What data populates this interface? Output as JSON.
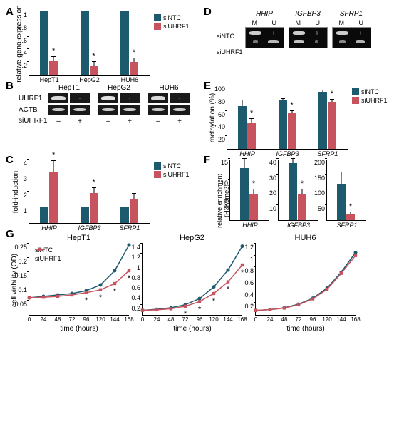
{
  "colors": {
    "siNTC": "#1e5a6e",
    "siUHRF1": "#c7535f",
    "axis": "#000000"
  },
  "legend": {
    "siNTC": "siNTC",
    "siUHRF1": "siUHRF1"
  },
  "panelA": {
    "ylabel": "relative gene expression",
    "ylim": [
      0,
      1.0
    ],
    "yticks": [
      0.2,
      0.4,
      0.6,
      0.8,
      1.0
    ],
    "groups": [
      "HepT1",
      "HepG2",
      "HUH6"
    ],
    "ntc": [
      1.0,
      1.0,
      1.0
    ],
    "uhrf1": [
      0.22,
      0.15,
      0.2
    ],
    "err": [
      0.06,
      0.05,
      0.06
    ],
    "stars": [
      true,
      true,
      true
    ]
  },
  "panelB": {
    "cells": [
      "HepT1",
      "HepG2",
      "HUH6"
    ],
    "rows": [
      "UHRF1",
      "ACTB"
    ],
    "footer_label": "siUHRF1",
    "signs": [
      "–",
      "+",
      "–",
      "+",
      "–",
      "+"
    ],
    "uhrf1_intensity": [
      0.9,
      0.1,
      0.95,
      0.05,
      0.9,
      0.1
    ],
    "actb_intensity": [
      0.8,
      0.8,
      0.8,
      0.8,
      0.8,
      0.8
    ]
  },
  "panelC": {
    "ylabel": "fold-induction",
    "ylim": [
      0,
      4.0
    ],
    "yticks": [
      1.0,
      2.0,
      3.0,
      4.0
    ],
    "genes": [
      "HHIP",
      "IGFBP3",
      "SFRP1"
    ],
    "ntc": [
      1.0,
      1.0,
      1.0
    ],
    "uhrf1": [
      3.2,
      1.9,
      1.5
    ],
    "err": [
      0.7,
      0.3,
      0.35
    ],
    "stars": [
      true,
      true,
      false
    ]
  },
  "panelD": {
    "genes": [
      "HHIP",
      "IGFBP3",
      "SFRP1"
    ],
    "rows": [
      "siNTC",
      "siUHRF1"
    ],
    "mu": [
      "M",
      "U"
    ],
    "bands": {
      "HHIP": {
        "siNTC": [
          0.9,
          0.1
        ],
        "siUHRF1": [
          0.4,
          0.8
        ]
      },
      "IGFBP3": {
        "siNTC": [
          0.9,
          0.15
        ],
        "siUHRF1": [
          0.85,
          0.3
        ]
      },
      "SFRP1": {
        "siNTC": [
          0.9,
          0.1
        ],
        "siUHRF1": [
          0.5,
          0.75
        ]
      }
    }
  },
  "panelE": {
    "ylabel": "methylation (%)",
    "ylim": [
      0,
      100
    ],
    "yticks": [
      20,
      40,
      60,
      80,
      100
    ],
    "genes": [
      "HHIP",
      "IGFBP3",
      "SFRP1"
    ],
    "ntc": [
      67,
      77,
      90
    ],
    "uhrf1": [
      41,
      57,
      74
    ],
    "err_ntc": [
      9,
      2,
      2
    ],
    "err_uhrf1": [
      6,
      3,
      4
    ],
    "stars": [
      true,
      true,
      true
    ]
  },
  "panelF": {
    "ylabel": "relative enrichment\n(H3K9me2)",
    "genes": [
      "HHIP",
      "IGFBP3",
      "SFRP1"
    ],
    "ylims": [
      [
        0,
        15
      ],
      [
        0,
        40
      ],
      [
        0,
        200
      ]
    ],
    "yticks": [
      [
        5,
        10,
        15
      ],
      [
        10,
        20,
        30,
        40
      ],
      [
        50,
        100,
        150,
        200
      ]
    ],
    "ntc": [
      12.8,
      37,
      118
    ],
    "uhrf1": [
      6.3,
      17,
      18
    ],
    "err_ntc": [
      2.2,
      3,
      38
    ],
    "err_uhrf1": [
      1.2,
      3,
      8
    ],
    "stars": [
      true,
      true,
      true
    ]
  },
  "panelG": {
    "ylabel": "cell viability (OD)",
    "xlabel": "time (hours)",
    "cells": [
      "HepT1",
      "HepG2",
      "HUH6"
    ],
    "xticks": [
      0,
      24,
      48,
      72,
      96,
      120,
      144,
      168
    ],
    "ylims": [
      [
        0.0,
        0.25
      ],
      [
        0.0,
        1.4
      ],
      [
        0.0,
        1.2
      ]
    ],
    "yticks": [
      [
        0.05,
        0.1,
        0.15,
        0.2,
        0.25
      ],
      [
        0.2,
        0.4,
        0.6,
        0.8,
        1.0,
        1.2,
        1.4
      ],
      [
        0.2,
        0.4,
        0.6,
        0.8,
        1.0,
        1.2
      ]
    ],
    "data": {
      "HepT1": {
        "ntc": [
          0.06,
          0.065,
          0.07,
          0.075,
          0.085,
          0.105,
          0.155,
          0.245
        ],
        "uhrf1": [
          0.06,
          0.062,
          0.065,
          0.07,
          0.078,
          0.088,
          0.11,
          0.155
        ],
        "stars": [
          false,
          false,
          false,
          false,
          true,
          true,
          true,
          true
        ]
      },
      "HepG2": {
        "ntc": [
          0.09,
          0.11,
          0.14,
          0.2,
          0.32,
          0.55,
          0.88,
          1.35
        ],
        "uhrf1": [
          0.09,
          0.1,
          0.12,
          0.17,
          0.26,
          0.42,
          0.65,
          0.98
        ],
        "stars": [
          false,
          false,
          false,
          true,
          true,
          true,
          true,
          true
        ]
      },
      "HUH6": {
        "ntc": [
          0.075,
          0.09,
          0.12,
          0.18,
          0.28,
          0.45,
          0.72,
          1.05
        ],
        "uhrf1": [
          0.075,
          0.088,
          0.115,
          0.17,
          0.27,
          0.43,
          0.7,
          1.0
        ],
        "stars": [
          false,
          false,
          false,
          false,
          false,
          false,
          false,
          false
        ]
      }
    }
  }
}
